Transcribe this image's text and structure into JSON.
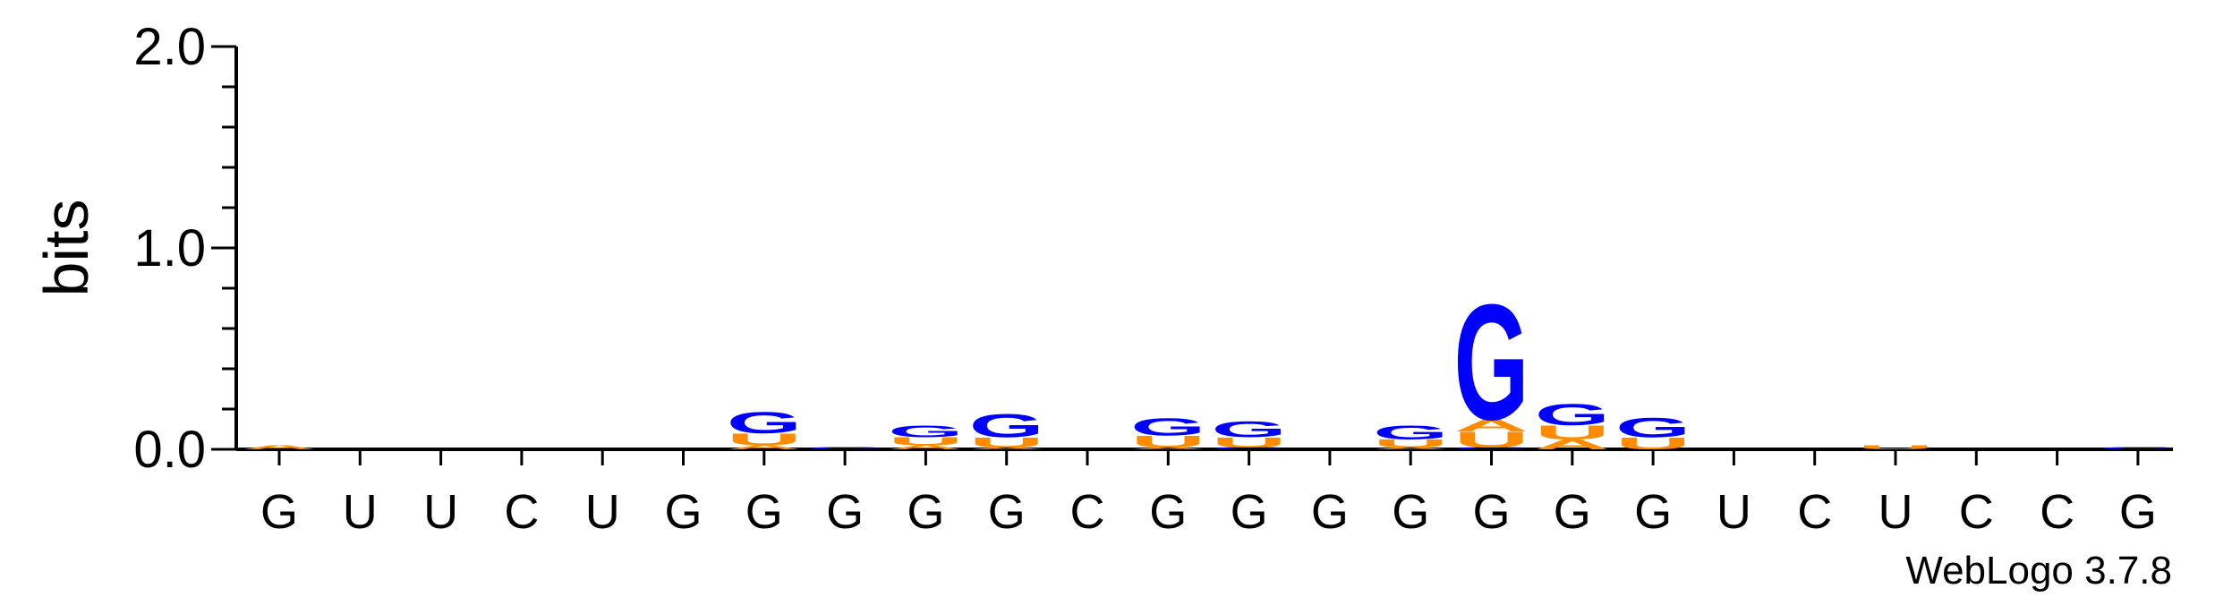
{
  "chart_data": {
    "type": "sequence-logo",
    "ylabel": "bits",
    "ylim": [
      0,
      2.0
    ],
    "yticks": [
      {
        "value": 0.0,
        "label": "0.0"
      },
      {
        "value": 1.0,
        "label": "1.0"
      },
      {
        "value": 2.0,
        "label": "2.0"
      }
    ],
    "x_labels": [
      "G",
      "U",
      "U",
      "C",
      "U",
      "G",
      "G",
      "G",
      "G",
      "G",
      "C",
      "G",
      "G",
      "G",
      "G",
      "G",
      "G",
      "G",
      "U",
      "C",
      "U",
      "C",
      "C",
      "G"
    ],
    "colors": {
      "G": "#0000ff",
      "U": "#ff8c00",
      "A": "#ff8c00",
      "C": "#0000ff"
    },
    "positions": [
      {
        "stack": [
          {
            "base": "A",
            "bits": 0.02
          }
        ]
      },
      {
        "stack": [
          {
            "base": "U",
            "bits": 0.0
          }
        ]
      },
      {
        "stack": []
      },
      {
        "stack": []
      },
      {
        "stack": []
      },
      {
        "stack": []
      },
      {
        "stack": [
          {
            "base": "A",
            "bits": 0.02
          },
          {
            "base": "U",
            "bits": 0.06
          },
          {
            "base": "G",
            "bits": 0.11
          }
        ]
      },
      {
        "stack": [
          {
            "base": "C",
            "bits": 0.01
          }
        ]
      },
      {
        "stack": [
          {
            "base": "A",
            "bits": 0.02
          },
          {
            "base": "U",
            "bits": 0.04
          },
          {
            "base": "G",
            "bits": 0.06
          }
        ]
      },
      {
        "stack": [
          {
            "base": "A",
            "bits": 0.01
          },
          {
            "base": "U",
            "bits": 0.05
          },
          {
            "base": "G",
            "bits": 0.12
          }
        ]
      },
      {
        "stack": []
      },
      {
        "stack": [
          {
            "base": "A",
            "bits": 0.01
          },
          {
            "base": "U",
            "bits": 0.06
          },
          {
            "base": "G",
            "bits": 0.09
          }
        ]
      },
      {
        "stack": [
          {
            "base": "C",
            "bits": 0.01
          },
          {
            "base": "U",
            "bits": 0.05
          },
          {
            "base": "G",
            "bits": 0.08
          }
        ]
      },
      {
        "stack": []
      },
      {
        "stack": [
          {
            "base": "A",
            "bits": 0.01
          },
          {
            "base": "U",
            "bits": 0.04
          },
          {
            "base": "G",
            "bits": 0.07
          }
        ]
      },
      {
        "stack": [
          {
            "base": "C",
            "bits": 0.01
          },
          {
            "base": "U",
            "bits": 0.08
          },
          {
            "base": "A",
            "bits": 0.06
          },
          {
            "base": "G",
            "bits": 0.59
          }
        ]
      },
      {
        "stack": [
          {
            "base": "A",
            "bits": 0.05
          },
          {
            "base": "U",
            "bits": 0.07
          },
          {
            "base": "G",
            "bits": 0.11
          }
        ]
      },
      {
        "stack": [
          {
            "base": "U",
            "bits": 0.06
          },
          {
            "base": "G",
            "bits": 0.1
          }
        ]
      },
      {
        "stack": []
      },
      {
        "stack": []
      },
      {
        "stack": [
          {
            "base": "U",
            "bits": 0.02
          }
        ]
      },
      {
        "stack": []
      },
      {
        "stack": []
      },
      {
        "stack": [
          {
            "base": "C",
            "bits": 0.01
          }
        ]
      }
    ]
  },
  "footer": {
    "credit": "WebLogo 3.7.8"
  }
}
